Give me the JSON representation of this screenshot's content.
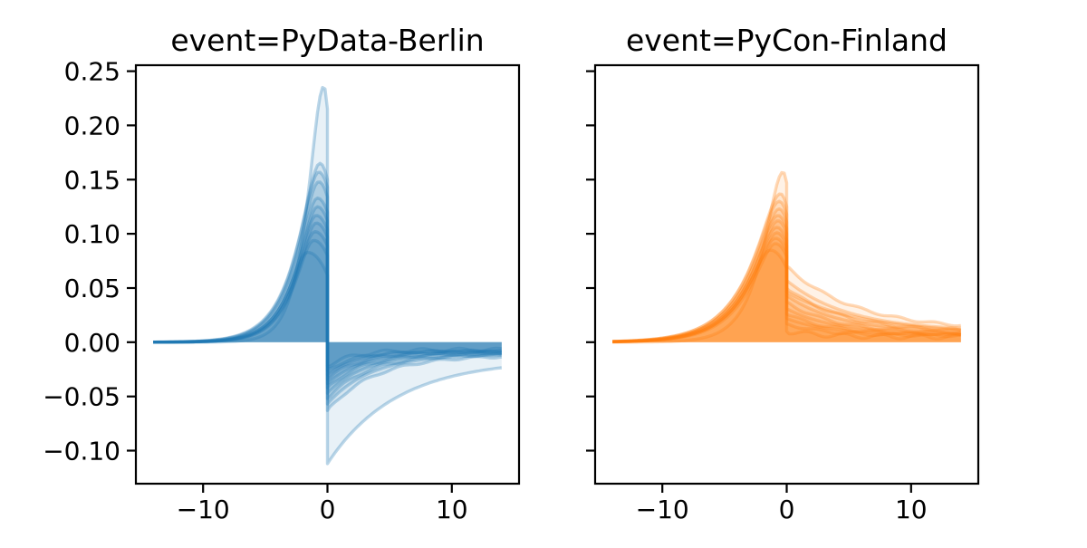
{
  "figure": {
    "background": "#ffffff",
    "text_color": "#000000"
  },
  "chart_data": {
    "type": "line",
    "description": "Two-panel ensemble of posterior event-effect curves, each curve filled to the zero baseline, with a sharp discontinuity at x=0",
    "panels": [
      {
        "title": "event=PyData-Berlin",
        "color": "#1f77b4",
        "line_alpha": 0.3,
        "fill_alpha": 0.1,
        "x_tick_values": [
          -10,
          0,
          10
        ],
        "x_tick_labels": [
          "−10",
          "0",
          "10"
        ],
        "y_tick_values": [
          0.25,
          0.2,
          0.15,
          0.1,
          0.05,
          0.0,
          -0.05,
          -0.1
        ],
        "y_tick_labels": [
          "0.25",
          "0.20",
          "0.15",
          "0.10",
          "0.05",
          "0.00",
          "−0.05",
          "−0.10"
        ],
        "show_y_tick_labels": true,
        "xlim": [
          -15.4,
          15.4
        ],
        "ylim": [
          -0.1305,
          0.2555
        ],
        "x_data_range": [
          -14,
          14
        ],
        "discontinuity_x": 0,
        "curves": [
          {
            "peak_x": -0.3,
            "peak_y": 0.236,
            "rise_scale": 1.1,
            "value_before_drop": 0.215,
            "value_after_drop": -0.112,
            "tail_value": -0.016,
            "recovery_tau": 5.5,
            "noise_amp": 0.0
          },
          {
            "peak_x": -0.6,
            "peak_y": 0.165,
            "rise_scale": 1.75,
            "value_before_drop": 0.15,
            "value_after_drop": -0.063,
            "tail_value": -0.012,
            "recovery_tau": 3.8,
            "noise_amp": 0.001
          },
          {
            "peak_x": -0.7,
            "peak_y": 0.157,
            "rise_scale": 1.7,
            "value_before_drop": 0.143,
            "value_after_drop": -0.057,
            "tail_value": -0.011,
            "recovery_tau": 3.5,
            "noise_amp": 0.0
          },
          {
            "peak_x": -0.7,
            "peak_y": 0.148,
            "rise_scale": 1.7,
            "value_before_drop": 0.134,
            "value_after_drop": -0.052,
            "tail_value": -0.011,
            "recovery_tau": 3.3,
            "noise_amp": 0.001
          },
          {
            "peak_x": -0.8,
            "peak_y": 0.133,
            "rise_scale": 1.65,
            "value_before_drop": 0.12,
            "value_after_drop": -0.047,
            "tail_value": -0.01,
            "recovery_tau": 3.1,
            "noise_amp": 0.0
          },
          {
            "peak_x": -0.8,
            "peak_y": 0.125,
            "rise_scale": 1.6,
            "value_before_drop": 0.112,
            "value_after_drop": -0.042,
            "tail_value": -0.01,
            "recovery_tau": 2.9,
            "noise_amp": 0.001
          },
          {
            "peak_x": -0.9,
            "peak_y": 0.117,
            "rise_scale": 1.6,
            "value_before_drop": 0.104,
            "value_after_drop": -0.038,
            "tail_value": -0.009,
            "recovery_tau": 2.8,
            "noise_amp": 0.0
          },
          {
            "peak_x": -0.9,
            "peak_y": 0.11,
            "rise_scale": 1.55,
            "value_before_drop": 0.097,
            "value_after_drop": -0.034,
            "tail_value": -0.009,
            "recovery_tau": 2.6,
            "noise_amp": 0.001
          },
          {
            "peak_x": -1.0,
            "peak_y": 0.102,
            "rise_scale": 1.55,
            "value_before_drop": 0.089,
            "value_after_drop": -0.03,
            "tail_value": -0.008,
            "recovery_tau": 2.5,
            "noise_amp": 0.0
          },
          {
            "peak_x": -1.1,
            "peak_y": 0.094,
            "rise_scale": 1.5,
            "value_before_drop": 0.08,
            "value_after_drop": -0.026,
            "tail_value": -0.008,
            "recovery_tau": 2.4,
            "noise_amp": 0.001
          },
          {
            "peak_x": -1.6,
            "peak_y": 0.083,
            "rise_scale": 1.5,
            "value_before_drop": 0.062,
            "value_after_drop": -0.022,
            "tail_value": -0.007,
            "recovery_tau": 2.2,
            "noise_amp": 0.0015
          }
        ]
      },
      {
        "title": "event=PyCon-Finland",
        "color": "#ff7f0e",
        "line_alpha": 0.3,
        "fill_alpha": 0.1,
        "x_tick_values": [
          -10,
          0,
          10
        ],
        "x_tick_labels": [
          "−10",
          "0",
          "10"
        ],
        "y_tick_values": [
          0.25,
          0.2,
          0.15,
          0.1,
          0.05,
          0.0,
          -0.05,
          -0.1
        ],
        "y_tick_labels": [
          "0.25",
          "0.20",
          "0.15",
          "0.10",
          "0.05",
          "0.00",
          "−0.05",
          "−0.10"
        ],
        "show_y_tick_labels": false,
        "xlim": [
          -15.4,
          15.4
        ],
        "ylim": [
          -0.1305,
          0.2555
        ],
        "x_data_range": [
          -14,
          14
        ],
        "discontinuity_x": 0,
        "curves": [
          {
            "peak_x": -0.3,
            "peak_y": 0.157,
            "rise_scale": 1.5,
            "value_before_drop": 0.147,
            "value_after_drop": 0.046,
            "tail_value": 0.008,
            "recovery_tau": 6.0,
            "noise_amp": 0.0
          },
          {
            "peak_x": -0.5,
            "peak_y": 0.137,
            "rise_scale": 2.4,
            "value_before_drop": 0.125,
            "value_after_drop": 0.07,
            "tail_value": 0.011,
            "recovery_tau": 5.5,
            "noise_amp": 0.001
          },
          {
            "peak_x": -0.6,
            "peak_y": 0.13,
            "rise_scale": 2.4,
            "value_before_drop": 0.118,
            "value_after_drop": 0.057,
            "tail_value": 0.01,
            "recovery_tau": 5.0,
            "noise_amp": 0.0
          },
          {
            "peak_x": -0.6,
            "peak_y": 0.123,
            "rise_scale": 2.35,
            "value_before_drop": 0.111,
            "value_after_drop": 0.05,
            "tail_value": 0.009,
            "recovery_tau": 4.6,
            "noise_amp": 0.001
          },
          {
            "peak_x": -0.7,
            "peak_y": 0.117,
            "rise_scale": 2.35,
            "value_before_drop": 0.105,
            "value_after_drop": 0.043,
            "tail_value": 0.009,
            "recovery_tau": 4.3,
            "noise_amp": 0.0
          },
          {
            "peak_x": -0.7,
            "peak_y": 0.112,
            "rise_scale": 2.3,
            "value_before_drop": 0.1,
            "value_after_drop": 0.037,
            "tail_value": 0.008,
            "recovery_tau": 4.0,
            "noise_amp": 0.001
          },
          {
            "peak_x": -0.8,
            "peak_y": 0.106,
            "rise_scale": 2.3,
            "value_before_drop": 0.094,
            "value_after_drop": 0.031,
            "tail_value": 0.008,
            "recovery_tau": 3.8,
            "noise_amp": 0.0
          },
          {
            "peak_x": -0.8,
            "peak_y": 0.101,
            "rise_scale": 2.25,
            "value_before_drop": 0.089,
            "value_after_drop": 0.026,
            "tail_value": 0.007,
            "recovery_tau": 3.6,
            "noise_amp": 0.001
          },
          {
            "peak_x": -0.9,
            "peak_y": 0.096,
            "rise_scale": 2.25,
            "value_before_drop": 0.084,
            "value_after_drop": 0.022,
            "tail_value": 0.007,
            "recovery_tau": 3.4,
            "noise_amp": 0.0
          },
          {
            "peak_x": -0.9,
            "peak_y": 0.091,
            "rise_scale": 2.2,
            "value_before_drop": 0.079,
            "value_after_drop": 0.017,
            "tail_value": 0.006,
            "recovery_tau": 3.2,
            "noise_amp": 0.001
          },
          {
            "peak_x": -1.3,
            "peak_y": 0.085,
            "rise_scale": 2.2,
            "value_before_drop": 0.068,
            "value_after_drop": 0.01,
            "tail_value": 0.005,
            "recovery_tau": 3.0,
            "noise_amp": 0.002
          }
        ]
      }
    ]
  }
}
